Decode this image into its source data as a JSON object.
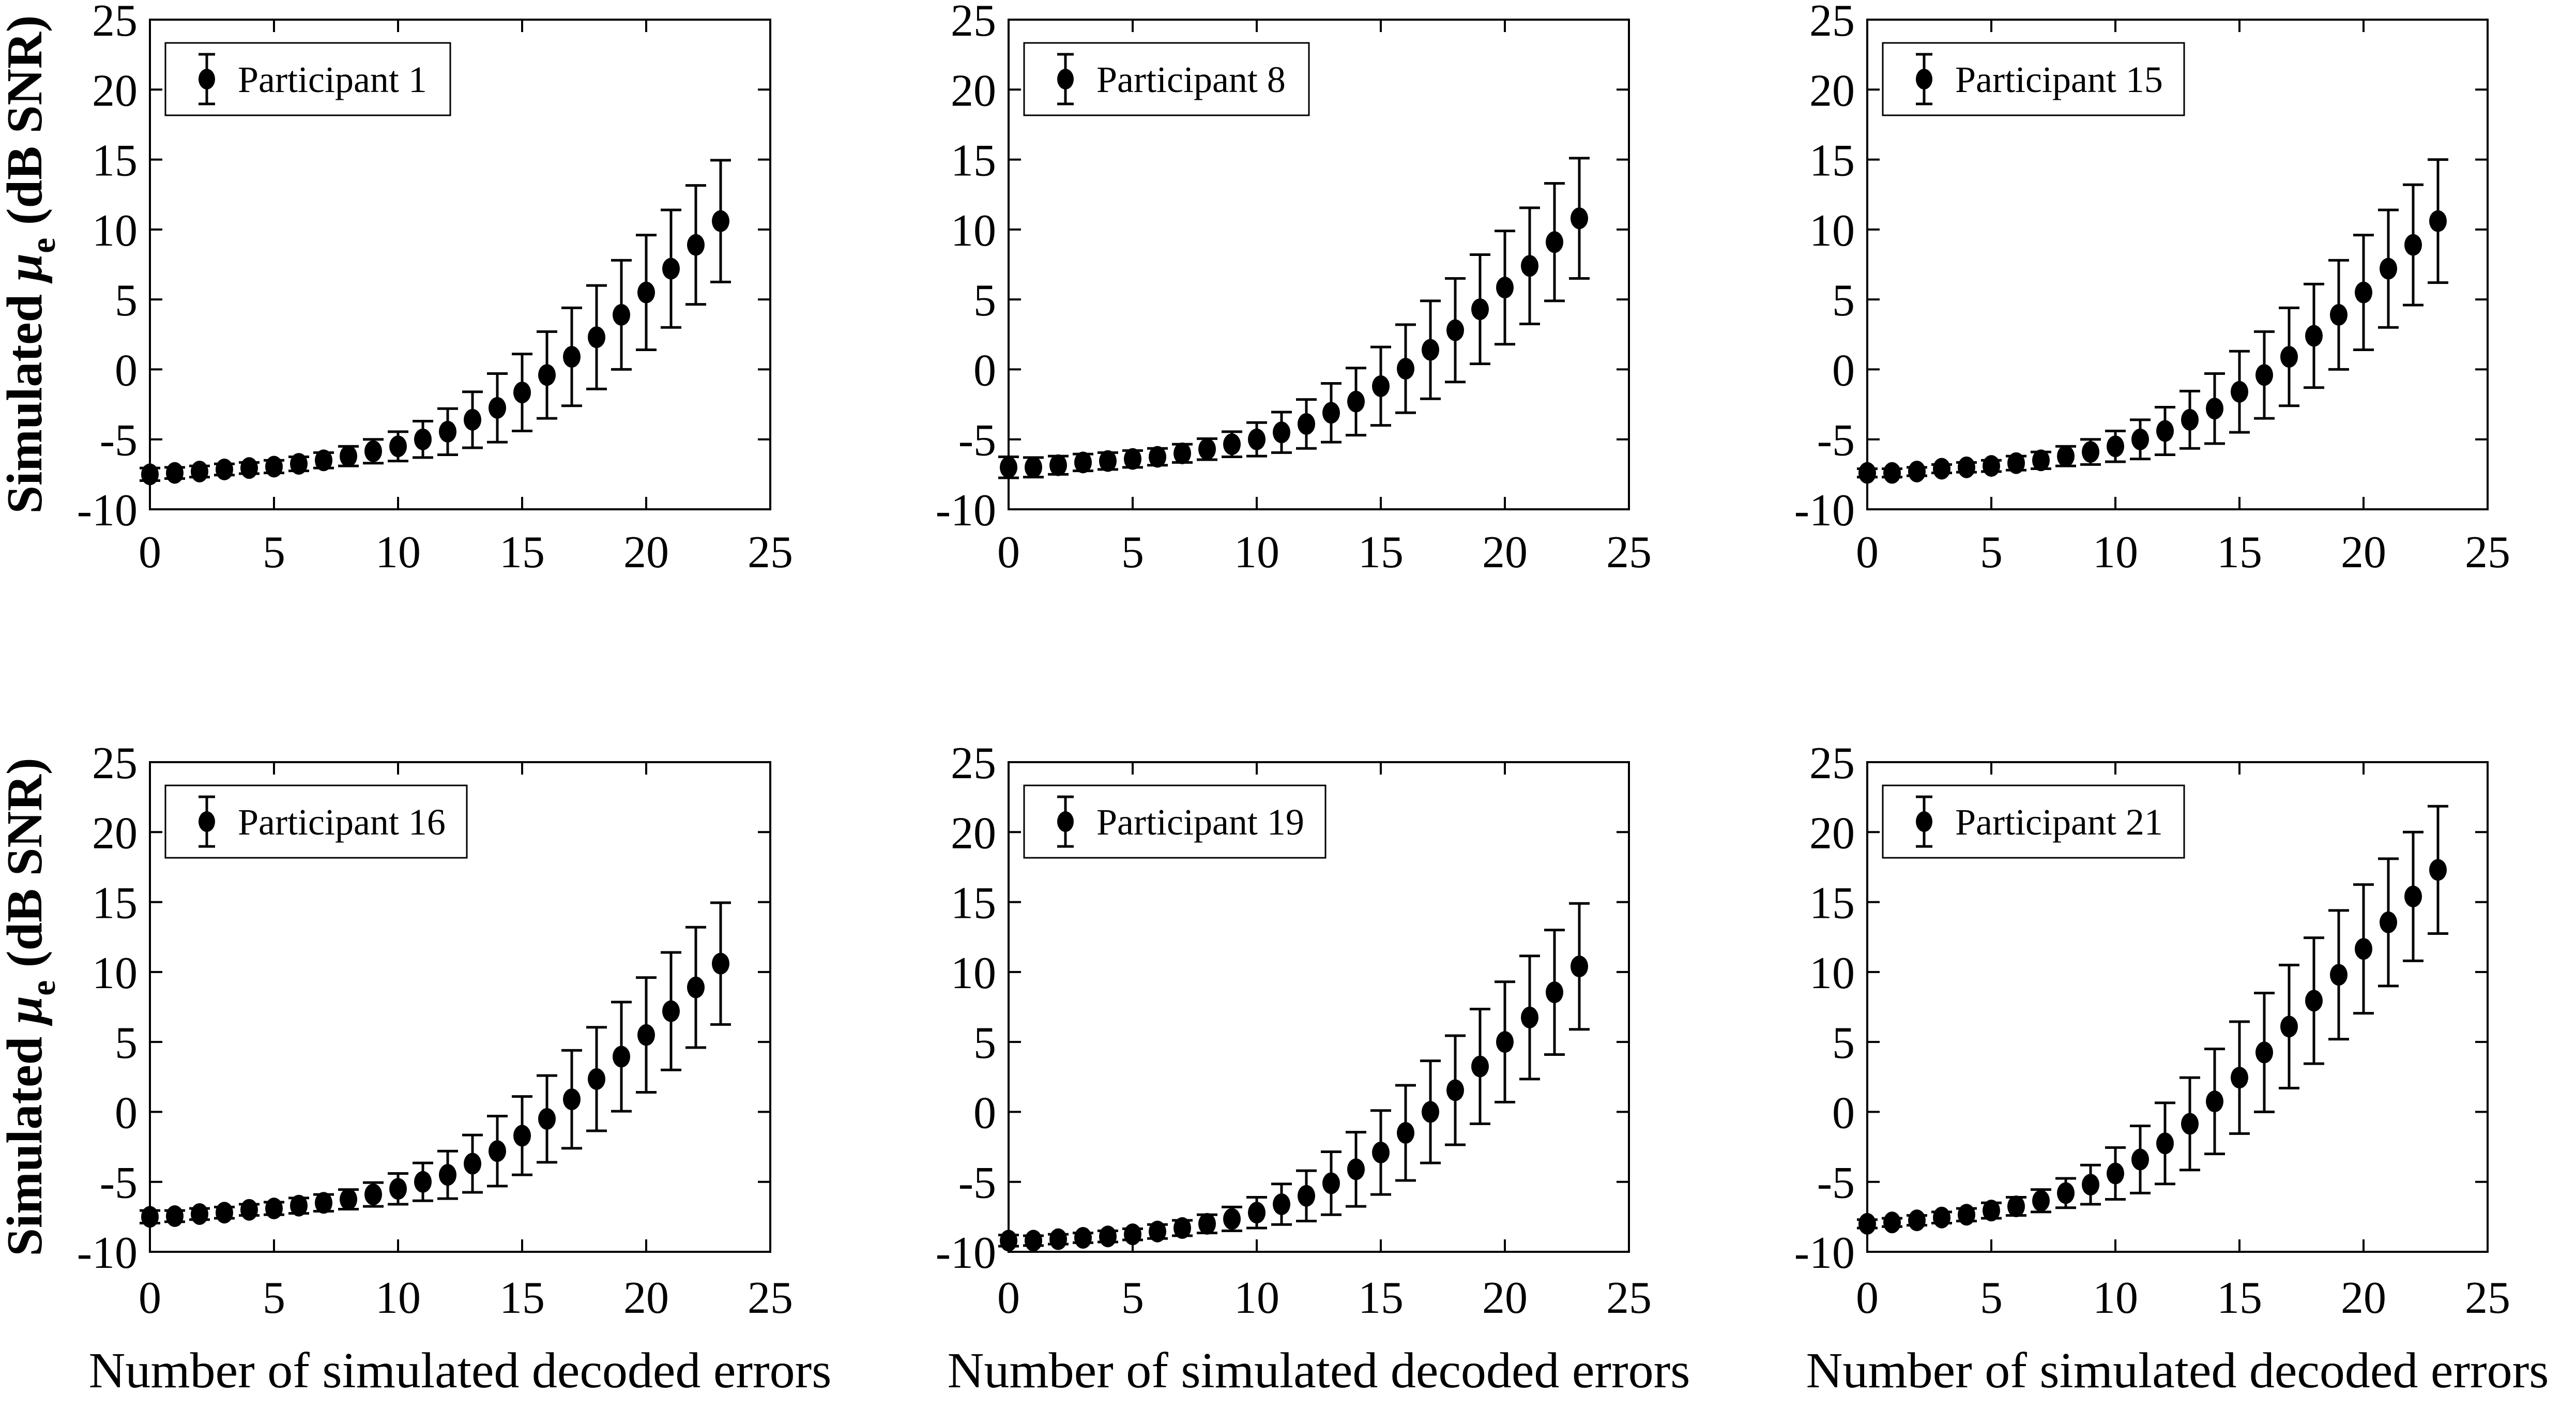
{
  "figure": {
    "xlabel": "Number of simulated decoded errors",
    "ylabel_prefix": "Simulated ",
    "ylabel_mu": "μ",
    "ylabel_sub": "e",
    "ylabel_suffix": " (dB SNR)",
    "background_color": "#ffffff",
    "axis_color": "#000000",
    "marker_color": "#000000",
    "grid": false,
    "legend_position": "top-left",
    "marker_style": "filled-circle-with-error-bars"
  },
  "chart_data": [
    {
      "type": "scatter",
      "error_bars": true,
      "legend": "Participant 1",
      "row": 0,
      "col": 0,
      "xlim": [
        0,
        25
      ],
      "ylim": [
        -10,
        25
      ],
      "xticks": [
        0,
        5,
        10,
        15,
        20,
        25
      ],
      "yticks": [
        -10,
        -5,
        0,
        5,
        10,
        15,
        20,
        25
      ],
      "x": [
        0,
        1,
        2,
        3,
        4,
        5,
        6,
        7,
        8,
        9,
        10,
        11,
        12,
        13,
        14,
        15,
        16,
        17,
        18,
        19,
        20,
        21,
        22,
        23
      ],
      "means": [
        -7.5,
        -7.4,
        -7.3,
        -7.15,
        -7.05,
        -6.95,
        -6.75,
        -6.5,
        -6.2,
        -5.85,
        -5.5,
        -5.0,
        -4.45,
        -3.6,
        -2.75,
        -1.65,
        -0.4,
        0.9,
        2.3,
        3.9,
        5.5,
        7.2,
        8.9,
        10.6
      ],
      "errors": [
        0.45,
        0.4,
        0.4,
        0.4,
        0.4,
        0.45,
        0.5,
        0.55,
        0.7,
        0.85,
        1.05,
        1.3,
        1.65,
        2.0,
        2.45,
        2.75,
        3.1,
        3.5,
        3.7,
        3.9,
        4.1,
        4.2,
        4.25,
        4.35
      ]
    },
    {
      "type": "scatter",
      "error_bars": true,
      "legend": "Participant 8",
      "row": 0,
      "col": 1,
      "xlim": [
        0,
        25
      ],
      "ylim": [
        -10,
        25
      ],
      "xticks": [
        0,
        5,
        10,
        15,
        20,
        25
      ],
      "yticks": [
        -10,
        -5,
        0,
        5,
        10,
        15,
        20,
        25
      ],
      "x": [
        0,
        1,
        2,
        3,
        4,
        5,
        6,
        7,
        8,
        9,
        10,
        11,
        12,
        13,
        14,
        15,
        16,
        17,
        18,
        19,
        20,
        21,
        22,
        23
      ],
      "means": [
        -7.0,
        -7.0,
        -6.85,
        -6.65,
        -6.55,
        -6.4,
        -6.25,
        -6.0,
        -5.7,
        -5.35,
        -5.0,
        -4.5,
        -3.9,
        -3.1,
        -2.3,
        -1.2,
        0.05,
        1.4,
        2.8,
        4.3,
        5.85,
        7.4,
        9.1,
        10.8
      ],
      "errors": [
        0.75,
        0.7,
        0.65,
        0.6,
        0.6,
        0.6,
        0.6,
        0.65,
        0.75,
        0.9,
        1.2,
        1.45,
        1.75,
        2.1,
        2.4,
        2.8,
        3.15,
        3.5,
        3.7,
        3.9,
        4.05,
        4.15,
        4.2,
        4.3
      ]
    },
    {
      "type": "scatter",
      "error_bars": true,
      "legend": "Participant 15",
      "row": 0,
      "col": 2,
      "xlim": [
        0,
        25
      ],
      "ylim": [
        -10,
        25
      ],
      "xticks": [
        0,
        5,
        10,
        15,
        20,
        25
      ],
      "yticks": [
        -10,
        -5,
        0,
        5,
        10,
        15,
        20,
        25
      ],
      "x": [
        0,
        1,
        2,
        3,
        4,
        5,
        6,
        7,
        8,
        9,
        10,
        11,
        12,
        13,
        14,
        15,
        16,
        17,
        18,
        19,
        20,
        21,
        22,
        23
      ],
      "means": [
        -7.4,
        -7.4,
        -7.3,
        -7.1,
        -7.0,
        -6.9,
        -6.7,
        -6.5,
        -6.2,
        -5.9,
        -5.5,
        -5.0,
        -4.4,
        -3.6,
        -2.8,
        -1.6,
        -0.4,
        0.9,
        2.4,
        3.9,
        5.5,
        7.2,
        8.9,
        10.6
      ],
      "errors": [
        0.3,
        0.3,
        0.3,
        0.3,
        0.35,
        0.4,
        0.5,
        0.6,
        0.7,
        0.9,
        1.1,
        1.4,
        1.7,
        2.05,
        2.5,
        2.9,
        3.1,
        3.5,
        3.7,
        3.9,
        4.1,
        4.2,
        4.3,
        4.4
      ]
    },
    {
      "type": "scatter",
      "error_bars": true,
      "legend": "Participant 16",
      "row": 1,
      "col": 0,
      "xlim": [
        0,
        25
      ],
      "ylim": [
        -10,
        25
      ],
      "xticks": [
        0,
        5,
        10,
        15,
        20,
        25
      ],
      "yticks": [
        -10,
        -5,
        0,
        5,
        10,
        15,
        20,
        25
      ],
      "x": [
        0,
        1,
        2,
        3,
        4,
        5,
        6,
        7,
        8,
        9,
        10,
        11,
        12,
        13,
        14,
        15,
        16,
        17,
        18,
        19,
        20,
        21,
        22,
        23
      ],
      "means": [
        -7.5,
        -7.45,
        -7.3,
        -7.2,
        -7.0,
        -6.9,
        -6.7,
        -6.5,
        -6.25,
        -5.9,
        -5.5,
        -5.0,
        -4.5,
        -3.7,
        -2.8,
        -1.7,
        -0.5,
        0.9,
        2.35,
        3.95,
        5.5,
        7.2,
        8.9,
        10.6
      ],
      "errors": [
        0.45,
        0.4,
        0.4,
        0.4,
        0.4,
        0.45,
        0.55,
        0.6,
        0.7,
        0.85,
        1.1,
        1.35,
        1.7,
        2.05,
        2.5,
        2.8,
        3.1,
        3.5,
        3.7,
        3.9,
        4.1,
        4.2,
        4.3,
        4.35
      ]
    },
    {
      "type": "scatter",
      "error_bars": true,
      "legend": "Participant 19",
      "row": 1,
      "col": 1,
      "xlim": [
        0,
        25
      ],
      "ylim": [
        -10,
        25
      ],
      "xticks": [
        0,
        5,
        10,
        15,
        20,
        25
      ],
      "yticks": [
        -10,
        -5,
        0,
        5,
        10,
        15,
        20,
        25
      ],
      "x": [
        0,
        1,
        2,
        3,
        4,
        5,
        6,
        7,
        8,
        9,
        10,
        11,
        12,
        13,
        14,
        15,
        16,
        17,
        18,
        19,
        20,
        21,
        22,
        23
      ],
      "means": [
        -9.2,
        -9.2,
        -9.1,
        -9.0,
        -8.9,
        -8.75,
        -8.55,
        -8.3,
        -8.0,
        -7.65,
        -7.2,
        -6.6,
        -6.0,
        -5.1,
        -4.1,
        -2.9,
        -1.5,
        0.0,
        1.55,
        3.25,
        5.0,
        6.75,
        8.55,
        10.4
      ],
      "errors": [
        0.4,
        0.35,
        0.35,
        0.35,
        0.4,
        0.4,
        0.5,
        0.55,
        0.65,
        0.85,
        1.1,
        1.45,
        1.8,
        2.25,
        2.65,
        3.0,
        3.4,
        3.65,
        3.9,
        4.1,
        4.3,
        4.4,
        4.45,
        4.5
      ]
    },
    {
      "type": "scatter",
      "error_bars": true,
      "legend": "Participant 21",
      "row": 1,
      "col": 2,
      "xlim": [
        0,
        25
      ],
      "ylim": [
        -10,
        25
      ],
      "xticks": [
        0,
        5,
        10,
        15,
        20,
        25
      ],
      "yticks": [
        -10,
        -5,
        0,
        5,
        10,
        15,
        20,
        25
      ],
      "x": [
        0,
        1,
        2,
        3,
        4,
        5,
        6,
        7,
        8,
        9,
        10,
        11,
        12,
        13,
        14,
        15,
        16,
        17,
        18,
        19,
        20,
        21,
        22,
        23
      ],
      "means": [
        -8.0,
        -7.9,
        -7.75,
        -7.55,
        -7.35,
        -7.05,
        -6.75,
        -6.35,
        -5.8,
        -5.2,
        -4.4,
        -3.4,
        -2.25,
        -0.85,
        0.75,
        2.45,
        4.25,
        6.1,
        7.95,
        9.8,
        11.65,
        13.55,
        15.4,
        17.3
      ],
      "errors": [
        0.3,
        0.3,
        0.35,
        0.4,
        0.45,
        0.55,
        0.65,
        0.8,
        1.05,
        1.4,
        1.85,
        2.4,
        2.9,
        3.3,
        3.75,
        4.0,
        4.25,
        4.4,
        4.5,
        4.6,
        4.6,
        4.55,
        4.6,
        4.55
      ]
    }
  ]
}
